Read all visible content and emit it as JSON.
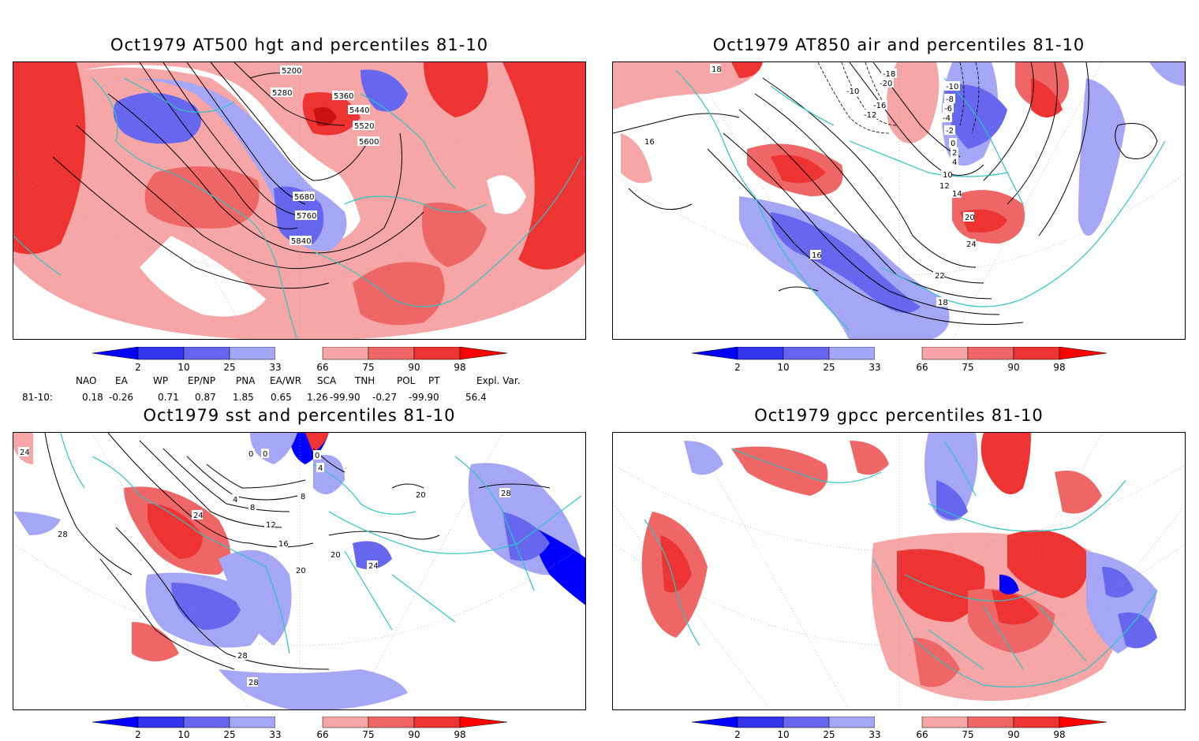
{
  "panels": [
    {
      "title": "Oct1979 AT500 hgt and percentiles 81-10"
    },
    {
      "title": "Oct1979 AT850 air and percentiles 81-10"
    },
    {
      "title": "Oct1979 sst and percentiles 81-10"
    },
    {
      "title": "Oct1979 gpcc percentiles 81-10"
    }
  ],
  "colorbar": {
    "labels": [
      "2",
      "10",
      "25",
      "33",
      "66",
      "75",
      "90",
      "98"
    ],
    "colors": {
      "blue_extreme": "#0000ff",
      "blue_1": "#3333ee",
      "blue_2": "#6666ee",
      "blue_3": "#a6a6f6",
      "red_1": "#f6a6a6",
      "red_2": "#ee6666",
      "red_3": "#ee3333",
      "red_extreme": "#ff0000"
    }
  },
  "indices": {
    "headers": [
      "NAO",
      "EA",
      "WP",
      "EP/NP",
      "PNA",
      "EA/WR",
      "SCA",
      "TNH",
      "POL",
      "PT",
      "Expl. Var."
    ],
    "row_label": "81-10:",
    "values": [
      "0.18",
      "-0.26",
      "0.71",
      "0.87",
      "1.85",
      "0.65",
      "1.26",
      "-99.90",
      "-0.27",
      "-99.90",
      "56.4"
    ]
  },
  "contour_labels": {
    "hgt": [
      "5200",
      "5280",
      "5360",
      "5440",
      "5520",
      "5600",
      "5680",
      "5760",
      "5840"
    ],
    "air": [
      "18",
      "16",
      "-10",
      "-18",
      "-20",
      "-16",
      "-12",
      "-10",
      "-8",
      "-6",
      "-4",
      "-2",
      "0",
      "2",
      "4",
      "10",
      "12",
      "14",
      "20",
      "22",
      "24",
      "16",
      "18"
    ],
    "sst": [
      "24",
      "28",
      "0",
      "0",
      "0",
      "4",
      "4",
      "8",
      "8",
      "12",
      "16",
      "20",
      "20",
      "24",
      "24",
      "28",
      "28",
      "28",
      "20"
    ]
  },
  "colors": {
    "coast": "#2ec4c4",
    "contour": "#000000",
    "grid": "#999999"
  }
}
